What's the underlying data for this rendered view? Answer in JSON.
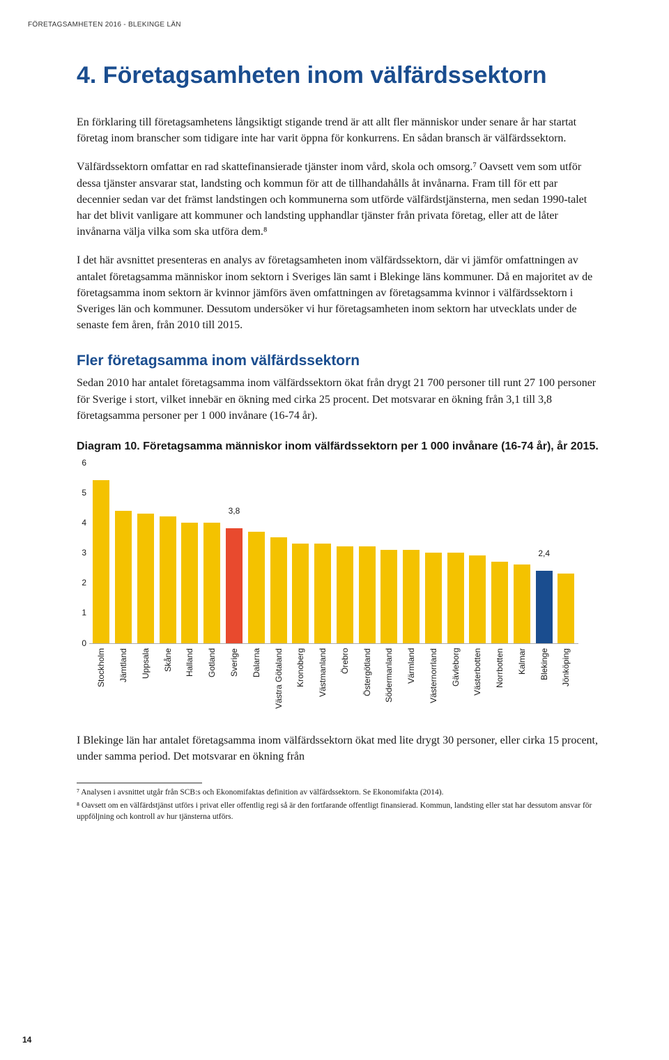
{
  "header_note": "FÖRETAGSAMHETEN 2016 - BLEKINGE LÄN",
  "main_heading": "4. Företagsamheten inom välfärdssektorn",
  "para1": "En förklaring till företagsamhetens långsiktigt stigande trend är att allt fler människor under senare år har startat företag inom branscher som tidigare inte har varit öppna för konkurrens. En sådan bransch är välfärdssektorn.",
  "para2": "Välfärdssektorn omfattar en rad skattefinansierade tjänster inom vård, skola och omsorg.⁷ Oavsett vem som utför dessa tjänster ansvarar stat, landsting och kommun för att de tillhandahålls åt invånarna. Fram till för ett par decennier sedan var det främst landstingen och kommunerna som utförde välfärdstjänsterna, men sedan 1990-talet har det blivit vanligare att kommuner och landsting upphandlar tjänster från privata företag, eller att de låter invånarna välja vilka som ska utföra dem.⁸",
  "para3": "I det här avsnittet presenteras en analys av företagsamheten inom välfärdssektorn, där vi jämför omfattningen av antalet företagsamma människor inom sektorn i Sveriges län samt i Blekinge läns kommuner. Då en majoritet av de företagsamma inom sektorn är kvinnor jämförs även omfattningen av företagsamma kvinnor i välfärdssektorn i Sveriges län och kommuner. Dessutom undersöker vi hur företagsamheten inom sektorn har utvecklats under de senaste fem åren, från 2010 till 2015.",
  "sub_heading": "Fler företagsamma inom välfärdssektorn",
  "para4": "Sedan 2010 har antalet företagsamma inom välfärdssektorn ökat från drygt 21 700 personer till runt 27 100 personer för Sverige i stort, vilket innebär en ökning med cirka 25 procent. Det motsvarar en ökning från 3,1 till 3,8 företagsamma personer per 1 000 invånare (16-74 år).",
  "diagram_title": "Diagram 10. Företagsamma människor inom välfärdssektorn per 1 000 invånare (16-74 år), år 2015.",
  "chart": {
    "type": "bar",
    "ylim": [
      0,
      6
    ],
    "ytick_step": 1,
    "yticks": [
      "0",
      "1",
      "2",
      "3",
      "4",
      "5",
      "6"
    ],
    "bar_default_color": "#f4c200",
    "highlight_colors": {
      "Sverige": "#e84a2e",
      "Blekinge": "#1a4d8f"
    },
    "background_color": "#ffffff",
    "categories": [
      "Stockholm",
      "Jämtland",
      "Uppsala",
      "Skåne",
      "Halland",
      "Gotland",
      "Sverige",
      "Dalarna",
      "Västra Götaland",
      "Kronoberg",
      "Västmanland",
      "Örebro",
      "Östergötland",
      "Södermanland",
      "Värmland",
      "Västernorrland",
      "Gävleborg",
      "Västerbotten",
      "Norrbotten",
      "Kalmar",
      "Blekinge",
      "Jönköping"
    ],
    "values": [
      5.4,
      4.4,
      4.3,
      4.2,
      4.0,
      4.0,
      3.8,
      3.7,
      3.5,
      3.3,
      3.3,
      3.2,
      3.2,
      3.1,
      3.1,
      3.0,
      3.0,
      2.9,
      2.7,
      2.6,
      2.4,
      2.3
    ],
    "value_labels": {
      "Sverige": "3,8",
      "Blekinge": "2,4"
    },
    "label_fontsize": 12,
    "bar_width": 0.75
  },
  "para5": "I Blekinge län har antalet företagsamma inom välfärdssektorn ökat med lite drygt 30 personer, eller cirka 15 procent, under samma period. Det motsvarar en ökning från",
  "footnote7": "⁷  Analysen i avsnittet utgår från SCB:s och Ekonomifaktas definition av välfärdssektorn. Se Ekonomifakta (2014).",
  "footnote8": "⁸  Oavsett om en välfärdstjänst utförs i privat eller offentlig regi så är den fortfarande offentligt finansierad. Kommun, landsting eller stat har dessutom ansvar för uppföljning och kontroll av hur tjänsterna utförs.",
  "page_num": "14"
}
